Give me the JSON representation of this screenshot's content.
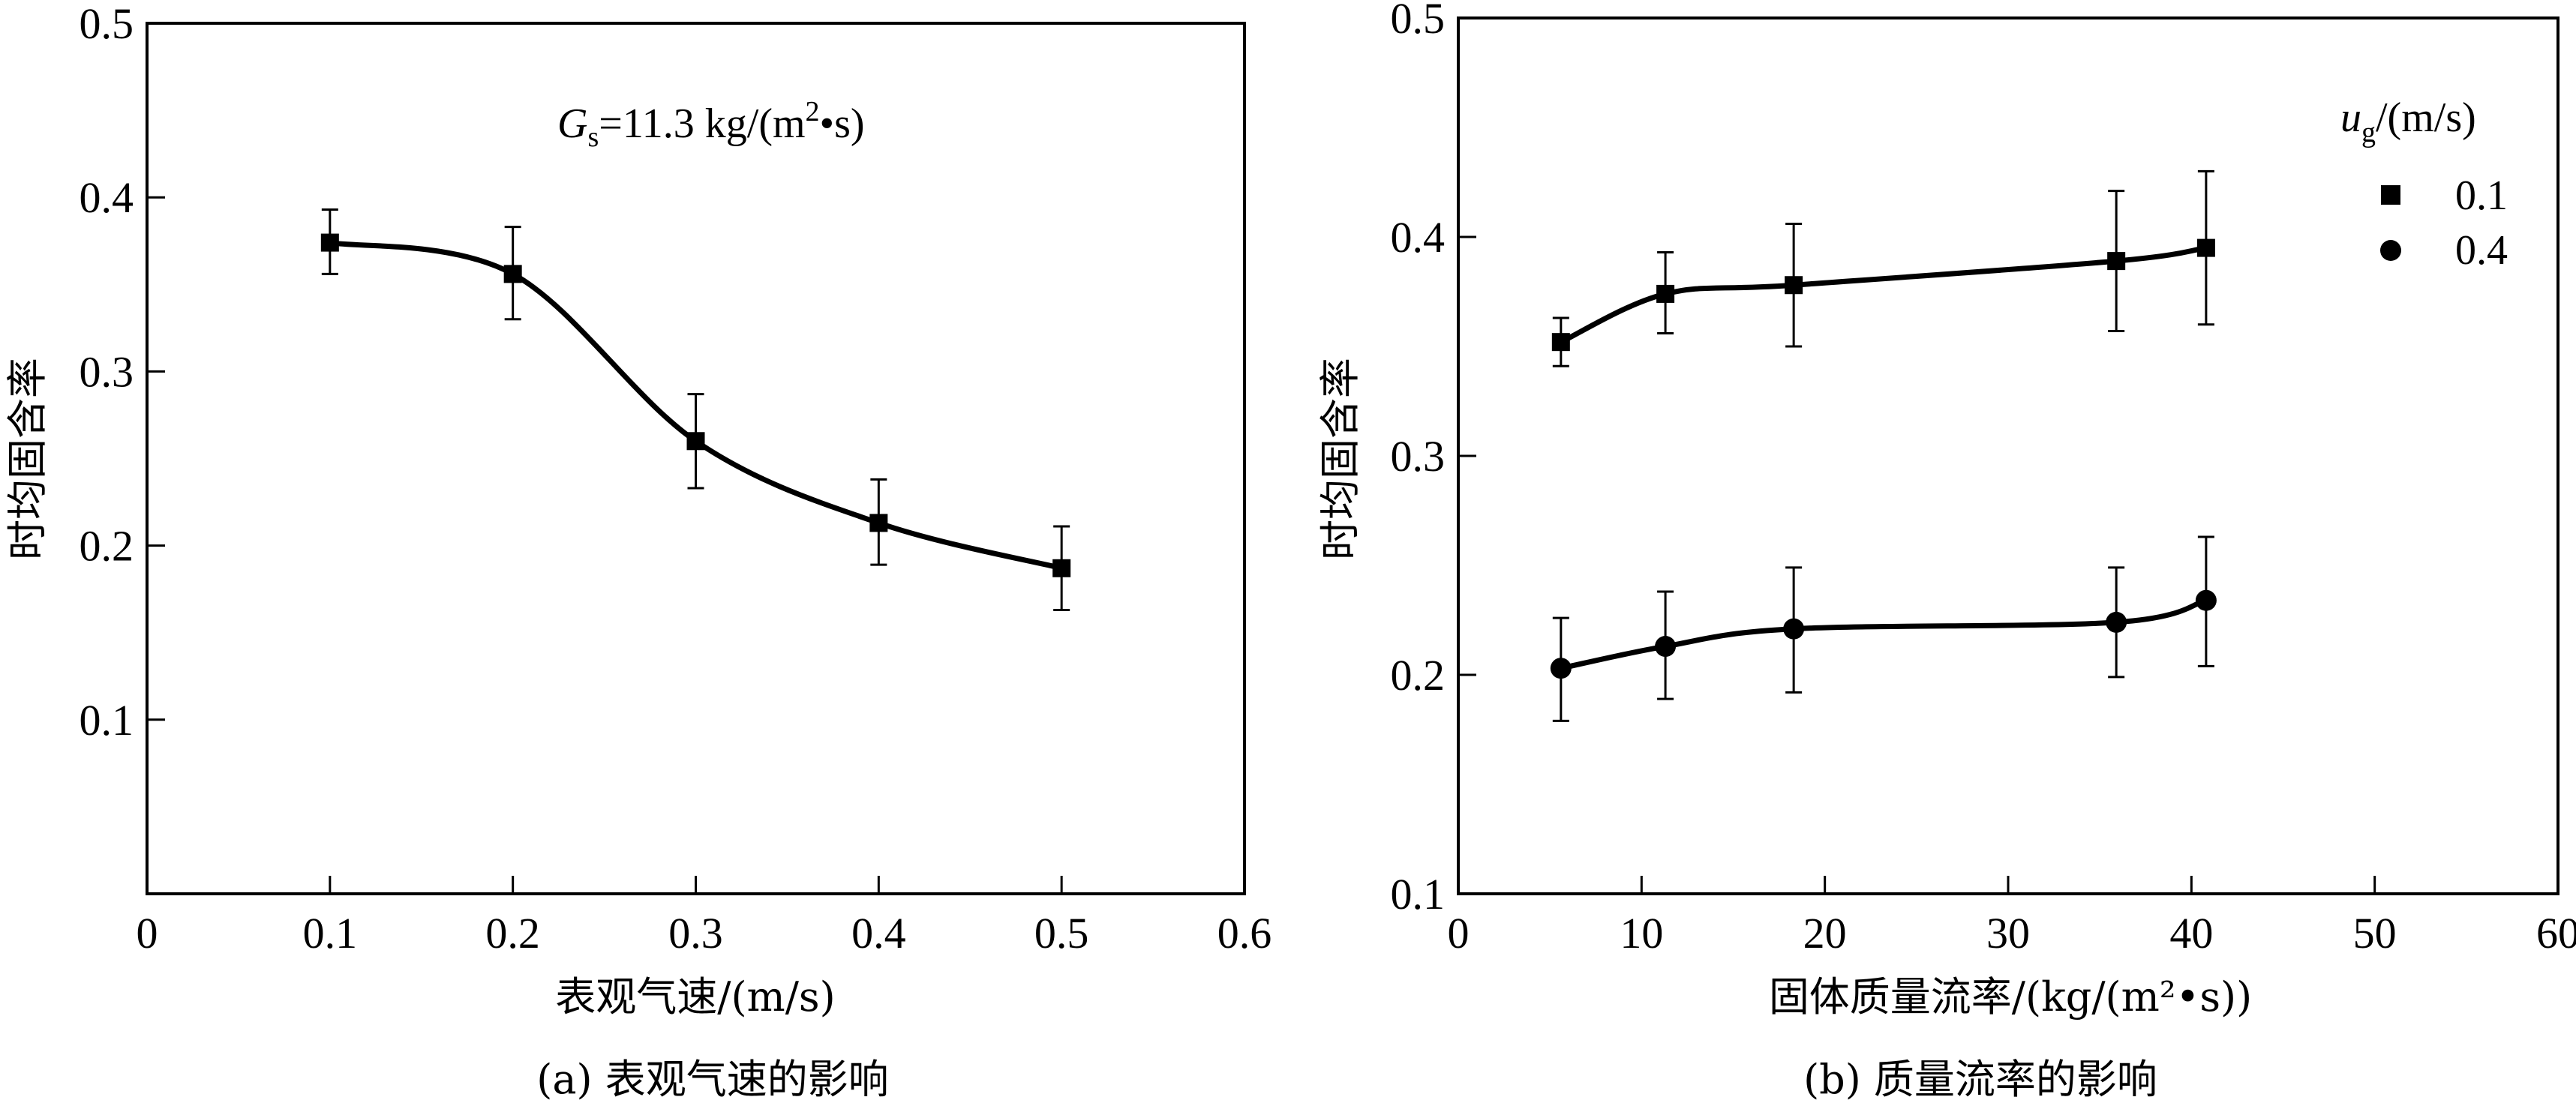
{
  "chart_data": [
    {
      "id": "a",
      "type": "scatter",
      "title": "",
      "caption": "(a) 表观气速的影响",
      "xlabel": "表观气速/(m/s)",
      "ylabel": "时均固含率",
      "xlim": [
        0,
        0.6
      ],
      "ylim": [
        0,
        0.5
      ],
      "xticks": [
        0,
        0.1,
        0.2,
        0.3,
        0.4,
        0.5,
        0.6
      ],
      "xtick_labels": [
        "0",
        "0.1",
        "0.2",
        "0.3",
        "0.4",
        "0.5",
        "0.6"
      ],
      "yticks": [
        0.1,
        0.2,
        0.3,
        0.4,
        0.5
      ],
      "ytick_labels": [
        "0.1",
        "0.2",
        "0.3",
        "0.4",
        "0.5"
      ],
      "grid": false,
      "annotation": {
        "symbol": "G",
        "subscript": "s",
        "text": "=11.3 kg/(m",
        "superscript": "2",
        "suffix": "•s)"
      },
      "series": [
        {
          "name": "Gs=11.3 kg/(m2·s)",
          "marker": "square",
          "fit_curve": true,
          "x": [
            0.1,
            0.2,
            0.3,
            0.4,
            0.5
          ],
          "y": [
            0.374,
            0.356,
            0.26,
            0.213,
            0.187
          ],
          "y_upper": [
            0.393,
            0.383,
            0.287,
            0.238,
            0.211
          ],
          "y_lower": [
            0.356,
            0.33,
            0.233,
            0.189,
            0.163
          ]
        }
      ]
    },
    {
      "id": "b",
      "type": "scatter",
      "title": "",
      "caption": "(b) 质量流率的影响",
      "xlabel": "固体质量流率/(kg/(m²•s))",
      "ylabel": "时均固含率",
      "xlim": [
        0,
        60
      ],
      "ylim": [
        0.1,
        0.5
      ],
      "xticks": [
        0,
        10,
        20,
        30,
        40,
        50,
        60
      ],
      "xtick_labels": [
        "0",
        "10",
        "20",
        "30",
        "40",
        "50",
        "60"
      ],
      "yticks": [
        0.1,
        0.2,
        0.3,
        0.4,
        0.5
      ],
      "ytick_labels": [
        "0.1",
        "0.2",
        "0.3",
        "0.4",
        "0.5"
      ],
      "grid": false,
      "legend": {
        "title_symbol": "u",
        "title_subscript": "g",
        "title_suffix": "/(m/s)",
        "placement": "top-right"
      },
      "series": [
        {
          "name": "0.1",
          "marker": "square",
          "fit_curve": true,
          "x": [
            5.6,
            11.3,
            18.3,
            35.9,
            40.8
          ],
          "y": [
            0.352,
            0.374,
            0.378,
            0.389,
            0.395
          ],
          "y_upper": [
            0.363,
            0.393,
            0.406,
            0.421,
            0.43
          ],
          "y_lower": [
            0.341,
            0.356,
            0.35,
            0.357,
            0.36
          ]
        },
        {
          "name": "0.4",
          "marker": "circle",
          "fit_curve": true,
          "x": [
            5.6,
            11.3,
            18.3,
            35.9,
            40.8
          ],
          "y": [
            0.203,
            0.213,
            0.221,
            0.224,
            0.234
          ],
          "y_upper": [
            0.226,
            0.238,
            0.249,
            0.249,
            0.263
          ],
          "y_lower": [
            0.179,
            0.189,
            0.192,
            0.199,
            0.204
          ]
        }
      ]
    }
  ]
}
